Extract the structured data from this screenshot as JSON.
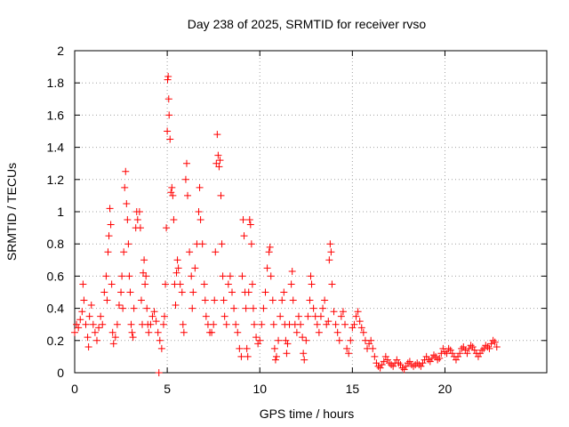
{
  "chart_data": {
    "type": "scatter",
    "title": "Day 238 of 2025, SRMTID for receiver rvso",
    "xlabel": "GPS time / hours",
    "ylabel": "SRMTID / TECUs",
    "xlim": [
      0,
      25.5
    ],
    "ylim": [
      0,
      2
    ],
    "x_ticks": [
      0,
      5,
      10,
      15,
      20
    ],
    "x_tick_labels": [
      "0",
      "5",
      "10",
      "15",
      "20"
    ],
    "y_ticks": [
      0,
      0.2,
      0.4,
      0.6,
      0.8,
      1,
      1.2,
      1.4,
      1.6,
      1.8,
      2
    ],
    "y_tick_labels": [
      "0",
      "0.2",
      "0.4",
      "0.6",
      "0.8",
      "1",
      "1.2",
      "1.4",
      "1.6",
      "1.8",
      "2"
    ],
    "grid": true,
    "marker": "+",
    "color": "#ff0000",
    "series": [
      {
        "name": "SRMTID",
        "points": [
          [
            0.0,
            0.25
          ],
          [
            0.1,
            0.3
          ],
          [
            0.2,
            0.28
          ],
          [
            0.3,
            0.33
          ],
          [
            0.4,
            0.38
          ],
          [
            0.45,
            0.55
          ],
          [
            0.5,
            0.45
          ],
          [
            0.6,
            0.3
          ],
          [
            0.7,
            0.22
          ],
          [
            0.75,
            0.16
          ],
          [
            0.8,
            0.35
          ],
          [
            0.9,
            0.42
          ],
          [
            1.0,
            0.3
          ],
          [
            1.1,
            0.25
          ],
          [
            1.2,
            0.2
          ],
          [
            1.3,
            0.28
          ],
          [
            1.4,
            0.35
          ],
          [
            1.5,
            0.3
          ],
          [
            1.6,
            0.5
          ],
          [
            1.7,
            0.6
          ],
          [
            1.75,
            0.45
          ],
          [
            1.8,
            0.75
          ],
          [
            1.85,
            0.85
          ],
          [
            1.9,
            1.02
          ],
          [
            1.95,
            0.92
          ],
          [
            2.0,
            0.55
          ],
          [
            2.05,
            0.25
          ],
          [
            2.1,
            0.18
          ],
          [
            2.2,
            0.22
          ],
          [
            2.3,
            0.3
          ],
          [
            2.4,
            0.42
          ],
          [
            2.5,
            0.5
          ],
          [
            2.55,
            0.6
          ],
          [
            2.6,
            0.4
          ],
          [
            2.65,
            0.75
          ],
          [
            2.7,
            1.15
          ],
          [
            2.75,
            1.25
          ],
          [
            2.8,
            1.05
          ],
          [
            2.85,
            0.95
          ],
          [
            2.9,
            0.8
          ],
          [
            2.95,
            0.6
          ],
          [
            3.0,
            0.5
          ],
          [
            3.05,
            0.3
          ],
          [
            3.1,
            0.25
          ],
          [
            3.15,
            0.22
          ],
          [
            3.2,
            0.4
          ],
          [
            3.3,
            0.9
          ],
          [
            3.35,
            1.0
          ],
          [
            3.4,
            0.95
          ],
          [
            3.5,
            1.0
          ],
          [
            3.55,
            0.9
          ],
          [
            3.6,
            0.45
          ],
          [
            3.65,
            0.3
          ],
          [
            3.7,
            0.62
          ],
          [
            3.75,
            0.7
          ],
          [
            3.8,
            0.55
          ],
          [
            3.85,
            0.6
          ],
          [
            3.9,
            0.4
          ],
          [
            3.95,
            0.3
          ],
          [
            4.0,
            0.25
          ],
          [
            4.1,
            0.3
          ],
          [
            4.2,
            0.35
          ],
          [
            4.3,
            0.38
          ],
          [
            4.4,
            0.32
          ],
          [
            4.5,
            0.25
          ],
          [
            4.55,
            0.0
          ],
          [
            4.6,
            0.2
          ],
          [
            4.7,
            0.15
          ],
          [
            4.8,
            0.3
          ],
          [
            4.85,
            0.35
          ],
          [
            4.9,
            0.55
          ],
          [
            4.95,
            0.9
          ],
          [
            5.0,
            1.5
          ],
          [
            5.02,
            1.82
          ],
          [
            5.05,
            1.84
          ],
          [
            5.08,
            1.7
          ],
          [
            5.1,
            1.6
          ],
          [
            5.15,
            1.45
          ],
          [
            5.2,
            1.12
          ],
          [
            5.25,
            1.15
          ],
          [
            5.3,
            1.1
          ],
          [
            5.35,
            0.95
          ],
          [
            5.4,
            0.55
          ],
          [
            5.45,
            0.42
          ],
          [
            5.5,
            0.62
          ],
          [
            5.55,
            0.7
          ],
          [
            5.6,
            0.65
          ],
          [
            5.7,
            0.55
          ],
          [
            5.8,
            0.5
          ],
          [
            5.85,
            0.3
          ],
          [
            5.9,
            0.25
          ],
          [
            6.0,
            1.2
          ],
          [
            6.05,
            1.3
          ],
          [
            6.1,
            1.1
          ],
          [
            6.2,
            0.75
          ],
          [
            6.3,
            0.6
          ],
          [
            6.35,
            0.4
          ],
          [
            6.4,
            0.5
          ],
          [
            6.5,
            0.65
          ],
          [
            6.6,
            0.8
          ],
          [
            6.7,
            1.0
          ],
          [
            6.75,
            1.15
          ],
          [
            6.8,
            0.95
          ],
          [
            6.9,
            0.8
          ],
          [
            7.0,
            0.55
          ],
          [
            7.05,
            0.45
          ],
          [
            7.1,
            0.35
          ],
          [
            7.2,
            0.3
          ],
          [
            7.3,
            0.25
          ],
          [
            7.4,
            0.25
          ],
          [
            7.5,
            0.3
          ],
          [
            7.55,
            0.45
          ],
          [
            7.6,
            0.75
          ],
          [
            7.65,
            1.3
          ],
          [
            7.7,
            1.48
          ],
          [
            7.75,
            1.35
          ],
          [
            7.8,
            1.28
          ],
          [
            7.85,
            1.32
          ],
          [
            7.9,
            1.1
          ],
          [
            7.95,
            0.8
          ],
          [
            8.0,
            0.6
          ],
          [
            8.05,
            0.45
          ],
          [
            8.1,
            0.35
          ],
          [
            8.2,
            0.3
          ],
          [
            8.3,
            0.55
          ],
          [
            8.4,
            0.6
          ],
          [
            8.5,
            0.5
          ],
          [
            8.6,
            0.4
          ],
          [
            8.7,
            0.3
          ],
          [
            8.8,
            0.25
          ],
          [
            8.9,
            0.15
          ],
          [
            9.0,
            0.1
          ],
          [
            9.05,
            0.6
          ],
          [
            9.1,
            0.95
          ],
          [
            9.15,
            0.85
          ],
          [
            9.2,
            0.5
          ],
          [
            9.25,
            0.4
          ],
          [
            9.3,
            0.15
          ],
          [
            9.35,
            0.1
          ],
          [
            9.4,
            0.5
          ],
          [
            9.45,
            0.95
          ],
          [
            9.5,
            0.92
          ],
          [
            9.55,
            0.8
          ],
          [
            9.6,
            0.55
          ],
          [
            9.65,
            0.4
          ],
          [
            9.7,
            0.3
          ],
          [
            9.8,
            0.22
          ],
          [
            9.9,
            0.18
          ],
          [
            10.0,
            0.2
          ],
          [
            10.1,
            0.3
          ],
          [
            10.2,
            0.4
          ],
          [
            10.3,
            0.5
          ],
          [
            10.4,
            0.65
          ],
          [
            10.5,
            0.75
          ],
          [
            10.55,
            0.78
          ],
          [
            10.6,
            0.6
          ],
          [
            10.7,
            0.45
          ],
          [
            10.75,
            0.3
          ],
          [
            10.8,
            0.15
          ],
          [
            10.85,
            0.08
          ],
          [
            10.9,
            0.1
          ],
          [
            11.0,
            0.2
          ],
          [
            11.1,
            0.35
          ],
          [
            11.2,
            0.45
          ],
          [
            11.3,
            0.5
          ],
          [
            11.35,
            0.3
          ],
          [
            11.4,
            0.2
          ],
          [
            11.45,
            0.12
          ],
          [
            11.5,
            0.18
          ],
          [
            11.6,
            0.3
          ],
          [
            11.7,
            0.55
          ],
          [
            11.75,
            0.63
          ],
          [
            11.8,
            0.45
          ],
          [
            11.9,
            0.3
          ],
          [
            12.0,
            0.25
          ],
          [
            12.1,
            0.35
          ],
          [
            12.2,
            0.3
          ],
          [
            12.3,
            0.22
          ],
          [
            12.35,
            0.12
          ],
          [
            12.4,
            0.08
          ],
          [
            12.5,
            0.2
          ],
          [
            12.6,
            0.35
          ],
          [
            12.7,
            0.45
          ],
          [
            12.75,
            0.6
          ],
          [
            12.8,
            0.55
          ],
          [
            12.9,
            0.4
          ],
          [
            13.0,
            0.35
          ],
          [
            13.1,
            0.3
          ],
          [
            13.2,
            0.25
          ],
          [
            13.3,
            0.35
          ],
          [
            13.4,
            0.4
          ],
          [
            13.5,
            0.45
          ],
          [
            13.6,
            0.3
          ],
          [
            13.7,
            0.32
          ],
          [
            13.75,
            0.7
          ],
          [
            13.8,
            0.8
          ],
          [
            13.85,
            0.75
          ],
          [
            13.9,
            0.55
          ],
          [
            14.0,
            0.38
          ],
          [
            14.1,
            0.3
          ],
          [
            14.2,
            0.25
          ],
          [
            14.3,
            0.2
          ],
          [
            14.4,
            0.35
          ],
          [
            14.5,
            0.38
          ],
          [
            14.6,
            0.3
          ],
          [
            14.7,
            0.15
          ],
          [
            14.8,
            0.12
          ],
          [
            14.9,
            0.2
          ],
          [
            15.0,
            0.28
          ],
          [
            15.1,
            0.3
          ],
          [
            15.2,
            0.35
          ],
          [
            15.3,
            0.38
          ],
          [
            15.4,
            0.32
          ],
          [
            15.5,
            0.28
          ],
          [
            15.6,
            0.25
          ],
          [
            15.7,
            0.2
          ],
          [
            15.8,
            0.15
          ],
          [
            15.9,
            0.18
          ],
          [
            16.0,
            0.2
          ],
          [
            16.1,
            0.15
          ],
          [
            16.2,
            0.1
          ],
          [
            16.3,
            0.06
          ],
          [
            16.4,
            0.04
          ],
          [
            16.5,
            0.03
          ],
          [
            16.6,
            0.05
          ],
          [
            16.7,
            0.07
          ],
          [
            16.8,
            0.1
          ],
          [
            16.9,
            0.08
          ],
          [
            17.0,
            0.06
          ],
          [
            17.1,
            0.05
          ],
          [
            17.2,
            0.04
          ],
          [
            17.3,
            0.06
          ],
          [
            17.4,
            0.08
          ],
          [
            17.5,
            0.06
          ],
          [
            17.6,
            0.05
          ],
          [
            17.7,
            0.03
          ],
          [
            17.8,
            0.02
          ],
          [
            17.9,
            0.04
          ],
          [
            18.0,
            0.06
          ],
          [
            18.1,
            0.07
          ],
          [
            18.2,
            0.05
          ],
          [
            18.3,
            0.04
          ],
          [
            18.4,
            0.05
          ],
          [
            18.5,
            0.06
          ],
          [
            18.6,
            0.05
          ],
          [
            18.7,
            0.04
          ],
          [
            18.8,
            0.06
          ],
          [
            18.9,
            0.08
          ],
          [
            19.0,
            0.1
          ],
          [
            19.1,
            0.08
          ],
          [
            19.2,
            0.07
          ],
          [
            19.3,
            0.09
          ],
          [
            19.4,
            0.11
          ],
          [
            19.5,
            0.1
          ],
          [
            19.6,
            0.08
          ],
          [
            19.7,
            0.09
          ],
          [
            19.8,
            0.12
          ],
          [
            19.9,
            0.15
          ],
          [
            20.0,
            0.13
          ],
          [
            20.1,
            0.12
          ],
          [
            20.2,
            0.15
          ],
          [
            20.3,
            0.14
          ],
          [
            20.4,
            0.12
          ],
          [
            20.5,
            0.1
          ],
          [
            20.6,
            0.08
          ],
          [
            20.7,
            0.1
          ],
          [
            20.8,
            0.12
          ],
          [
            20.9,
            0.15
          ],
          [
            21.0,
            0.16
          ],
          [
            21.1,
            0.14
          ],
          [
            21.2,
            0.12
          ],
          [
            21.3,
            0.15
          ],
          [
            21.4,
            0.17
          ],
          [
            21.5,
            0.16
          ],
          [
            21.6,
            0.14
          ],
          [
            21.7,
            0.12
          ],
          [
            21.8,
            0.1
          ],
          [
            21.9,
            0.12
          ],
          [
            22.0,
            0.14
          ],
          [
            22.1,
            0.15
          ],
          [
            22.2,
            0.17
          ],
          [
            22.3,
            0.16
          ],
          [
            22.4,
            0.15
          ],
          [
            22.5,
            0.18
          ],
          [
            22.6,
            0.2
          ],
          [
            22.7,
            0.19
          ],
          [
            22.8,
            0.16
          ]
        ]
      }
    ]
  }
}
